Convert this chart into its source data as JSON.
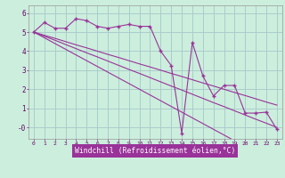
{
  "xlabel": "Windchill (Refroidissement éolien,°C)",
  "background_color": "#cceedd",
  "grid_color": "#aacccc",
  "line_color": "#993399",
  "x_hours": [
    0,
    1,
    2,
    3,
    4,
    5,
    6,
    7,
    8,
    9,
    10,
    11,
    12,
    13,
    14,
    15,
    16,
    17,
    18,
    19,
    20,
    21,
    22,
    23
  ],
  "windchill": [
    5.0,
    5.5,
    5.2,
    5.2,
    5.7,
    5.6,
    5.3,
    5.2,
    5.3,
    5.4,
    5.3,
    5.3,
    4.0,
    3.25,
    -0.3,
    4.45,
    2.7,
    1.65,
    2.2,
    2.2,
    0.75,
    0.75,
    0.8,
    -0.1
  ],
  "temp_line1": [
    5.0,
    4.78,
    4.57,
    4.35,
    4.13,
    3.91,
    3.7,
    3.48,
    3.26,
    3.04,
    2.83,
    2.61,
    2.39,
    2.17,
    1.96,
    1.74,
    1.52,
    1.3,
    1.09,
    0.87,
    0.65,
    0.43,
    0.22,
    0.0
  ],
  "temp_line2": [
    5.0,
    4.7,
    4.4,
    4.1,
    3.8,
    3.5,
    3.2,
    2.9,
    2.6,
    2.3,
    2.0,
    1.7,
    1.4,
    1.1,
    0.8,
    0.5,
    0.2,
    -0.1,
    -0.4,
    -0.7,
    -1.0,
    -1.3,
    -1.6,
    -1.9
  ],
  "temp_line3": [
    5.0,
    4.83,
    4.67,
    4.5,
    4.33,
    4.17,
    4.0,
    3.83,
    3.67,
    3.5,
    3.33,
    3.17,
    3.0,
    2.83,
    2.67,
    2.5,
    2.33,
    2.17,
    2.0,
    1.83,
    1.67,
    1.5,
    1.33,
    1.17
  ],
  "ylim": [
    -0.6,
    6.4
  ],
  "yticks": [
    0,
    1,
    2,
    3,
    4,
    5,
    6
  ],
  "ytick_labels": [
    "-0",
    "1",
    "2",
    "3",
    "4",
    "5",
    "6"
  ]
}
